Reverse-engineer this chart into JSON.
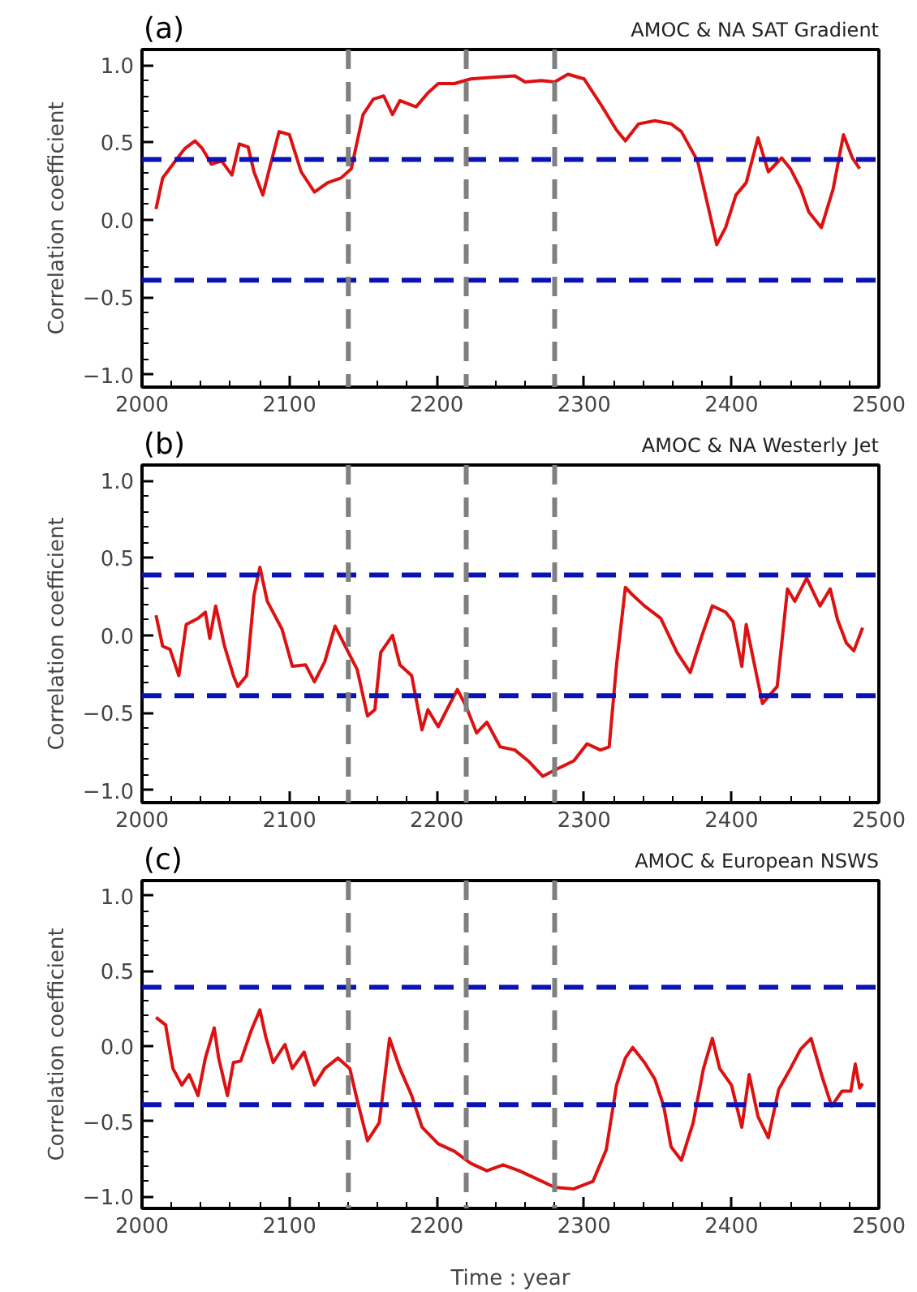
{
  "chart_data": [
    {
      "type": "line",
      "title": "AMOC & NA SAT Gradient",
      "ylabel": "Correlation coefficient",
      "annotations": [
        "(a)"
      ],
      "xlim": [
        2000,
        2500
      ],
      "ylim": [
        -1.08,
        1.1
      ],
      "xticks": [
        2000,
        {
          "value": 2020,
          "label": null
        },
        {
          "value": 2040,
          "label": null
        },
        {
          "value": 2060,
          "label": null
        },
        {
          "value": 2080,
          "label": null
        },
        2100,
        {
          "value": 2120,
          "label": null
        },
        {
          "value": 2140,
          "label": null
        },
        {
          "value": 2160,
          "label": null
        },
        {
          "value": 2180,
          "label": null
        },
        2200,
        {
          "value": 2220,
          "label": null
        },
        {
          "value": 2240,
          "label": null
        },
        {
          "value": 2260,
          "label": null
        },
        {
          "value": 2280,
          "label": null
        },
        2300,
        {
          "value": 2320,
          "label": null
        },
        {
          "value": 2340,
          "label": null
        },
        {
          "value": 2360,
          "label": null
        },
        {
          "value": 2380,
          "label": null
        },
        2400,
        {
          "value": 2420,
          "label": null
        },
        {
          "value": 2440,
          "label": null
        },
        {
          "value": 2460,
          "label": null
        },
        {
          "value": 2480,
          "label": null
        },
        2500
      ],
      "yticks": [
        {
          "value": -1.0,
          "label": "−1.0"
        },
        {
          "value": -0.9,
          "label": null
        },
        {
          "value": -0.8,
          "label": null
        },
        {
          "value": -0.7,
          "label": null
        },
        {
          "value": -0.6,
          "label": null
        },
        {
          "value": -0.5,
          "label": "−0.5"
        },
        {
          "value": -0.4,
          "label": null
        },
        {
          "value": -0.3,
          "label": null
        },
        {
          "value": -0.2,
          "label": null
        },
        {
          "value": -0.1,
          "label": null
        },
        {
          "value": 0.0,
          "label": "0.0"
        },
        {
          "value": 0.1,
          "label": null
        },
        {
          "value": 0.2,
          "label": null
        },
        {
          "value": 0.3,
          "label": null
        },
        {
          "value": 0.4,
          "label": null
        },
        {
          "value": 0.5,
          "label": "0.5"
        },
        {
          "value": 0.6,
          "label": null
        },
        {
          "value": 0.7,
          "label": null
        },
        {
          "value": 0.8,
          "label": null
        },
        {
          "value": 0.9,
          "label": null
        },
        {
          "value": 1.0,
          "label": "1.0"
        }
      ],
      "ref_lines": [
        {
          "axis": "y",
          "value": 0.39,
          "color": "#0a14b4",
          "line_style": "dashed"
        },
        {
          "axis": "y",
          "value": -0.39,
          "color": "#0a14b4",
          "line_style": "dashed"
        },
        {
          "axis": "x",
          "value": 2140,
          "color": "#808080",
          "line_style": "dashed"
        },
        {
          "axis": "x",
          "value": 2220,
          "color": "#808080",
          "line_style": "dashed"
        },
        {
          "axis": "x",
          "value": 2280,
          "color": "#808080",
          "line_style": "dashed"
        }
      ],
      "series": [
        {
          "color": "#dd1111",
          "x": [
            2009.5,
            2014,
            2021,
            2029,
            2036,
            2041,
            2047,
            2054,
            2061,
            2066,
            2072,
            2076,
            2082,
            2087,
            2093,
            2100,
            2108,
            2117,
            2126,
            2135,
            2142,
            2150,
            2157,
            2164,
            2170,
            2175,
            2186,
            2194,
            2201,
            2212,
            2223,
            2238,
            2253,
            2260,
            2271,
            2280,
            2289,
            2300,
            2311,
            2322,
            2328,
            2337,
            2348,
            2359,
            2366,
            2377,
            2385,
            2390,
            2396,
            2403,
            2410,
            2418,
            2425,
            2434,
            2440,
            2447,
            2452.5,
            2461,
            2469,
            2476,
            2482,
            2487
          ],
          "values": [
            0.07,
            0.27,
            0.36,
            0.46,
            0.51,
            0.46,
            0.36,
            0.38,
            0.29,
            0.49,
            0.47,
            0.31,
            0.16,
            0.35,
            0.57,
            0.55,
            0.31,
            0.18,
            0.24,
            0.27,
            0.33,
            0.68,
            0.78,
            0.8,
            0.68,
            0.77,
            0.73,
            0.82,
            0.88,
            0.88,
            0.91,
            0.92,
            0.93,
            0.89,
            0.9,
            0.89,
            0.94,
            0.91,
            0.75,
            0.58,
            0.51,
            0.62,
            0.64,
            0.62,
            0.57,
            0.38,
            0.05,
            -0.16,
            -0.05,
            0.16,
            0.24,
            0.53,
            0.31,
            0.4,
            0.33,
            0.2,
            0.05,
            -0.05,
            0.2,
            0.55,
            0.4,
            0.33
          ]
        }
      ]
    },
    {
      "type": "line",
      "title": "AMOC & NA Westerly Jet",
      "ylabel": "Correlation coefficient",
      "annotations": [
        "(b)"
      ],
      "xlim": [
        2000,
        2500
      ],
      "ylim": [
        -1.08,
        1.1
      ],
      "xticks": [
        2000,
        {
          "value": 2020,
          "label": null
        },
        {
          "value": 2040,
          "label": null
        },
        {
          "value": 2060,
          "label": null
        },
        {
          "value": 2080,
          "label": null
        },
        2100,
        {
          "value": 2120,
          "label": null
        },
        {
          "value": 2140,
          "label": null
        },
        {
          "value": 2160,
          "label": null
        },
        {
          "value": 2180,
          "label": null
        },
        2200,
        {
          "value": 2220,
          "label": null
        },
        {
          "value": 2240,
          "label": null
        },
        {
          "value": 2260,
          "label": null
        },
        {
          "value": 2280,
          "label": null
        },
        2300,
        {
          "value": 2320,
          "label": null
        },
        {
          "value": 2340,
          "label": null
        },
        {
          "value": 2360,
          "label": null
        },
        {
          "value": 2380,
          "label": null
        },
        2400,
        {
          "value": 2420,
          "label": null
        },
        {
          "value": 2440,
          "label": null
        },
        {
          "value": 2460,
          "label": null
        },
        {
          "value": 2480,
          "label": null
        },
        2500
      ],
      "yticks": [
        {
          "value": -1.0,
          "label": "−1.0"
        },
        {
          "value": -0.9,
          "label": null
        },
        {
          "value": -0.8,
          "label": null
        },
        {
          "value": -0.7,
          "label": null
        },
        {
          "value": -0.6,
          "label": null
        },
        {
          "value": -0.5,
          "label": "−0.5"
        },
        {
          "value": -0.4,
          "label": null
        },
        {
          "value": -0.3,
          "label": null
        },
        {
          "value": -0.2,
          "label": null
        },
        {
          "value": -0.1,
          "label": null
        },
        {
          "value": 0.0,
          "label": "0.0"
        },
        {
          "value": 0.1,
          "label": null
        },
        {
          "value": 0.2,
          "label": null
        },
        {
          "value": 0.3,
          "label": null
        },
        {
          "value": 0.4,
          "label": null
        },
        {
          "value": 0.5,
          "label": "0.5"
        },
        {
          "value": 0.6,
          "label": null
        },
        {
          "value": 0.7,
          "label": null
        },
        {
          "value": 0.8,
          "label": null
        },
        {
          "value": 0.9,
          "label": null
        },
        {
          "value": 1.0,
          "label": "1.0"
        }
      ],
      "ref_lines": [
        {
          "axis": "y",
          "value": 0.39,
          "color": "#0a14b4",
          "line_style": "dashed"
        },
        {
          "axis": "y",
          "value": -0.39,
          "color": "#0a14b4",
          "line_style": "dashed"
        },
        {
          "axis": "x",
          "value": 2140,
          "color": "#808080",
          "line_style": "dashed"
        },
        {
          "axis": "x",
          "value": 2220,
          "color": "#808080",
          "line_style": "dashed"
        },
        {
          "axis": "x",
          "value": 2280,
          "color": "#808080",
          "line_style": "dashed"
        }
      ],
      "series": [
        {
          "color": "#dd1111",
          "x": [
            2009.5,
            2014,
            2019,
            2025,
            2030,
            2038,
            2043,
            2046,
            2050,
            2056,
            2062,
            2065,
            2071,
            2076,
            2080,
            2085,
            2095,
            2102,
            2111,
            2117,
            2124,
            2131,
            2139,
            2146,
            2153,
            2158,
            2162,
            2170,
            2175,
            2183,
            2190,
            2194,
            2201,
            2209,
            2214,
            2220,
            2227,
            2234,
            2243,
            2253,
            2262,
            2272,
            2280,
            2293,
            2302,
            2311,
            2317,
            2322,
            2328,
            2333,
            2341,
            2352,
            2363,
            2372,
            2380,
            2387,
            2396,
            2401,
            2407,
            2410,
            2421,
            2431,
            2438,
            2443,
            2451,
            2460,
            2467,
            2472,
            2478,
            2483,
            2487,
            2489
          ],
          "values": [
            0.13,
            -0.07,
            -0.09,
            -0.26,
            0.07,
            0.11,
            0.15,
            -0.02,
            0.19,
            -0.07,
            -0.26,
            -0.33,
            -0.26,
            0.26,
            0.44,
            0.22,
            0.04,
            -0.2,
            -0.19,
            -0.3,
            -0.17,
            0.06,
            -0.09,
            -0.22,
            -0.52,
            -0.48,
            -0.11,
            0.0,
            -0.19,
            -0.26,
            -0.61,
            -0.48,
            -0.59,
            -0.44,
            -0.35,
            -0.46,
            -0.63,
            -0.56,
            -0.72,
            -0.74,
            -0.81,
            -0.91,
            -0.87,
            -0.81,
            -0.7,
            -0.74,
            -0.72,
            -0.19,
            0.31,
            0.26,
            0.19,
            0.11,
            -0.11,
            -0.24,
            0.0,
            0.19,
            0.15,
            0.09,
            -0.2,
            0.07,
            -0.44,
            -0.33,
            0.3,
            0.22,
            0.37,
            0.19,
            0.3,
            0.1,
            -0.05,
            -0.1,
            0.0,
            0.05
          ]
        }
      ]
    },
    {
      "type": "line",
      "title": "AMOC & European NSWS",
      "ylabel": "Correlation coefficient",
      "xlabel": "Time : year",
      "annotations": [
        "(c)"
      ],
      "xlim": [
        2000,
        2500
      ],
      "ylim": [
        -1.08,
        1.1
      ],
      "xticks": [
        2000,
        {
          "value": 2020,
          "label": null
        },
        {
          "value": 2040,
          "label": null
        },
        {
          "value": 2060,
          "label": null
        },
        {
          "value": 2080,
          "label": null
        },
        2100,
        {
          "value": 2120,
          "label": null
        },
        {
          "value": 2140,
          "label": null
        },
        {
          "value": 2160,
          "label": null
        },
        {
          "value": 2180,
          "label": null
        },
        2200,
        {
          "value": 2220,
          "label": null
        },
        {
          "value": 2240,
          "label": null
        },
        {
          "value": 2260,
          "label": null
        },
        {
          "value": 2280,
          "label": null
        },
        2300,
        {
          "value": 2320,
          "label": null
        },
        {
          "value": 2340,
          "label": null
        },
        {
          "value": 2360,
          "label": null
        },
        {
          "value": 2380,
          "label": null
        },
        2400,
        {
          "value": 2420,
          "label": null
        },
        {
          "value": 2440,
          "label": null
        },
        {
          "value": 2460,
          "label": null
        },
        {
          "value": 2480,
          "label": null
        },
        2500
      ],
      "yticks": [
        {
          "value": -1.0,
          "label": "−1.0"
        },
        {
          "value": -0.9,
          "label": null
        },
        {
          "value": -0.8,
          "label": null
        },
        {
          "value": -0.7,
          "label": null
        },
        {
          "value": -0.6,
          "label": null
        },
        {
          "value": -0.5,
          "label": "−0.5"
        },
        {
          "value": -0.4,
          "label": null
        },
        {
          "value": -0.3,
          "label": null
        },
        {
          "value": -0.2,
          "label": null
        },
        {
          "value": -0.1,
          "label": null
        },
        {
          "value": 0.0,
          "label": "0.0"
        },
        {
          "value": 0.1,
          "label": null
        },
        {
          "value": 0.2,
          "label": null
        },
        {
          "value": 0.3,
          "label": null
        },
        {
          "value": 0.4,
          "label": null
        },
        {
          "value": 0.5,
          "label": "0.5"
        },
        {
          "value": 0.6,
          "label": null
        },
        {
          "value": 0.7,
          "label": null
        },
        {
          "value": 0.8,
          "label": null
        },
        {
          "value": 0.9,
          "label": null
        },
        {
          "value": 1.0,
          "label": "1.0"
        }
      ],
      "ref_lines": [
        {
          "axis": "y",
          "value": 0.39,
          "color": "#0a14b4",
          "line_style": "dashed"
        },
        {
          "axis": "y",
          "value": -0.39,
          "color": "#0a14b4",
          "line_style": "dashed"
        },
        {
          "axis": "x",
          "value": 2140,
          "color": "#808080",
          "line_style": "dashed"
        },
        {
          "axis": "x",
          "value": 2220,
          "color": "#808080",
          "line_style": "dashed"
        },
        {
          "axis": "x",
          "value": 2280,
          "color": "#808080",
          "line_style": "dashed"
        }
      ],
      "series": [
        {
          "color": "#dd1111",
          "x": [
            2009.5,
            2016,
            2021,
            2027,
            2032,
            2038,
            2043,
            2049,
            2052,
            2058,
            2062,
            2067,
            2074,
            2080,
            2084,
            2089,
            2097,
            2102,
            2110,
            2117,
            2124,
            2133,
            2141,
            2146,
            2153,
            2161,
            2168,
            2175,
            2183,
            2190,
            2201,
            2212,
            2223,
            2234,
            2245,
            2256,
            2267,
            2280,
            2293,
            2306,
            2315,
            2322,
            2328,
            2333,
            2341,
            2348,
            2354,
            2359,
            2366,
            2374,
            2381,
            2387,
            2392,
            2400,
            2407,
            2412,
            2418,
            2425,
            2432,
            2440,
            2447,
            2454,
            2462,
            2468,
            2475,
            2481,
            2484,
            2487,
            2489
          ],
          "values": [
            0.19,
            0.14,
            -0.15,
            -0.26,
            -0.19,
            -0.33,
            -0.08,
            0.12,
            -0.08,
            -0.33,
            -0.11,
            -0.1,
            0.1,
            0.24,
            0.06,
            -0.11,
            0.01,
            -0.15,
            -0.04,
            -0.26,
            -0.15,
            -0.08,
            -0.15,
            -0.36,
            -0.63,
            -0.51,
            0.05,
            -0.15,
            -0.33,
            -0.54,
            -0.65,
            -0.7,
            -0.78,
            -0.83,
            -0.79,
            -0.83,
            -0.88,
            -0.94,
            -0.95,
            -0.9,
            -0.69,
            -0.26,
            -0.08,
            -0.01,
            -0.11,
            -0.22,
            -0.4,
            -0.67,
            -0.76,
            -0.51,
            -0.15,
            0.05,
            -0.15,
            -0.26,
            -0.54,
            -0.19,
            -0.47,
            -0.61,
            -0.29,
            -0.15,
            -0.02,
            0.05,
            -0.22,
            -0.4,
            -0.3,
            -0.3,
            -0.12,
            -0.28,
            -0.25
          ]
        }
      ]
    }
  ]
}
